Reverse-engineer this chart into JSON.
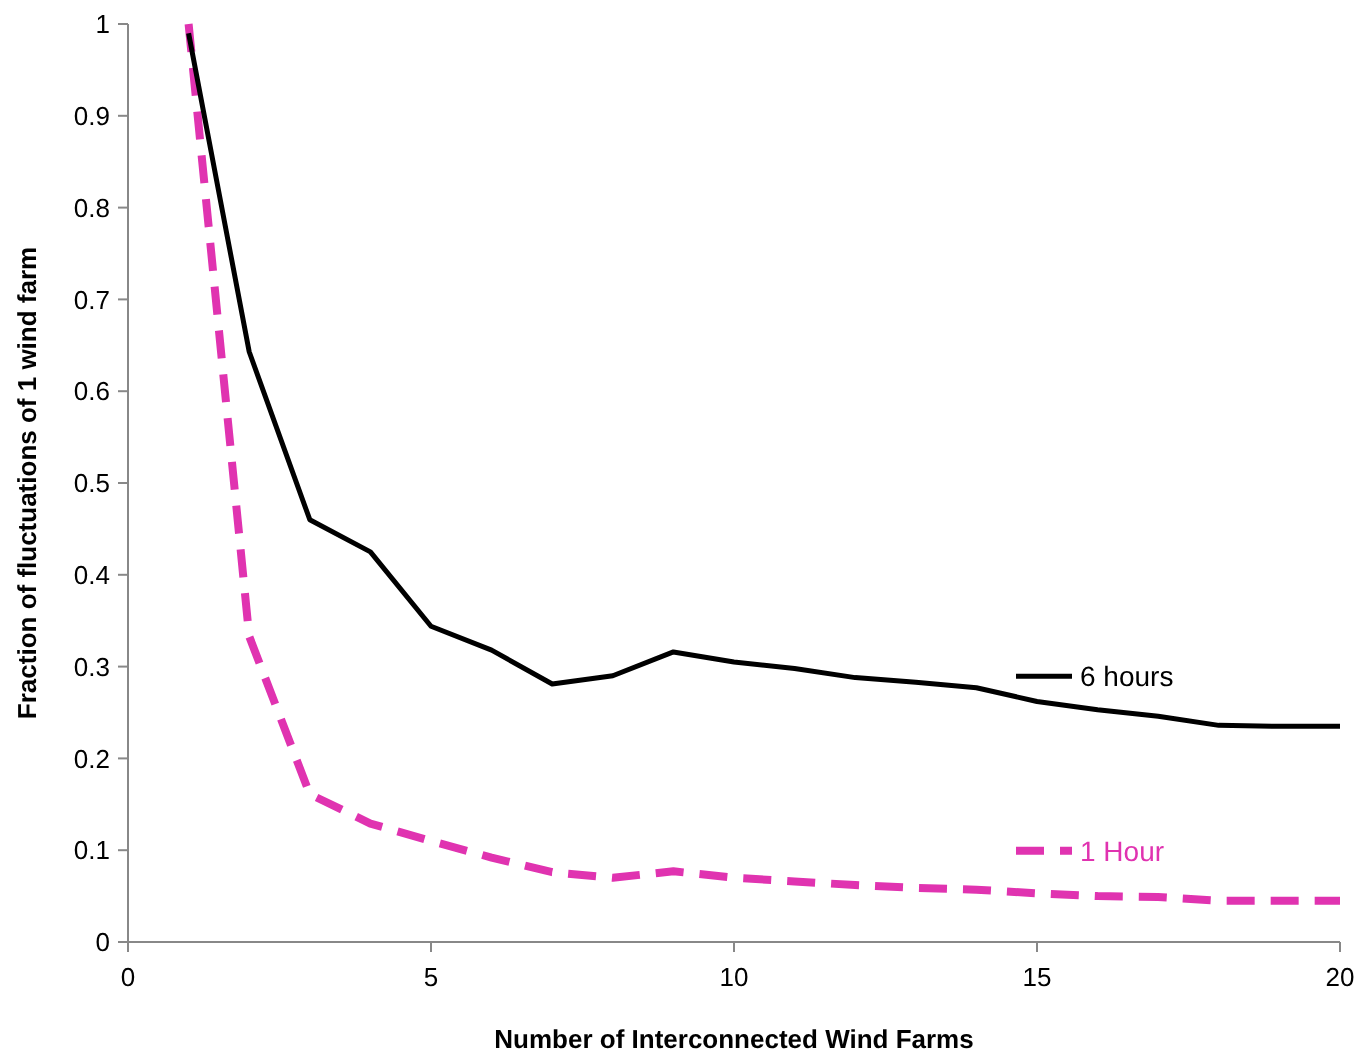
{
  "chart_data": {
    "type": "line",
    "xlabel": "Number of Interconnected Wind Farms",
    "ylabel": "Fraction of fluctuations of 1 wind farm",
    "x": [
      1,
      2,
      3,
      4,
      5,
      6,
      7,
      8,
      9,
      10,
      11,
      12,
      13,
      14,
      15,
      16,
      17,
      18,
      19,
      20
    ],
    "series": [
      {
        "name": "6 hours",
        "color": "#000000",
        "line_style": "solid",
        "values": [
          0.99,
          0.643,
          0.46,
          0.425,
          0.344,
          0.318,
          0.281,
          0.29,
          0.316,
          0.305,
          0.298,
          0.288,
          0.283,
          0.277,
          0.262,
          0.253,
          0.246,
          0.236,
          0.235,
          0.235
        ]
      },
      {
        "name": "1 Hour",
        "color": "#e033b0",
        "line_style": "dashed",
        "values": [
          1.0,
          0.333,
          0.161,
          0.129,
          0.11,
          0.092,
          0.076,
          0.07,
          0.077,
          0.07,
          0.066,
          0.062,
          0.059,
          0.057,
          0.053,
          0.05,
          0.049,
          0.045,
          0.045,
          0.045
        ]
      }
    ],
    "xlim": [
      0,
      20
    ],
    "xticks": [
      0,
      5,
      10,
      15,
      20
    ],
    "ylim": [
      0,
      1
    ],
    "yticks": [
      0,
      0.1,
      0.2,
      0.3,
      0.4,
      0.5,
      0.6,
      0.7,
      0.8,
      0.9,
      1
    ],
    "grid": false,
    "legend": "right",
    "marker": "none"
  }
}
